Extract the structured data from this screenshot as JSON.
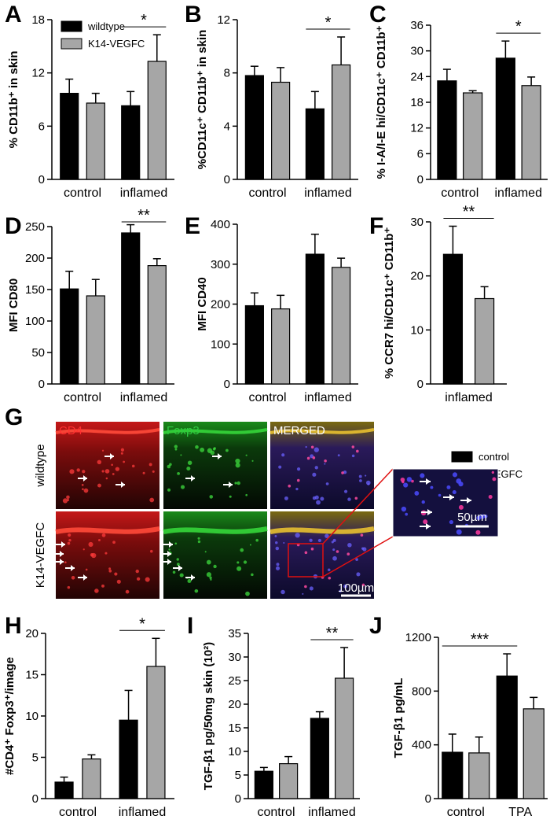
{
  "chart_data": [
    {
      "id": "A",
      "type": "bar",
      "letter": "A",
      "ylabel": "% CD11b⁺ in skin",
      "ylim": [
        0,
        18
      ],
      "yticks": [
        "0",
        "6",
        "12",
        "18"
      ],
      "categories": [
        "control",
        "inflamed"
      ],
      "legend": [
        {
          "label": "wildtype",
          "color": "#000000"
        },
        {
          "label": "K14-VEGFC",
          "color": "#a6a6a6"
        }
      ],
      "series": [
        {
          "name": "wildtype",
          "color": "#000000",
          "values": [
            9.7,
            8.3
          ],
          "errors": [
            1.6,
            1.6
          ]
        },
        {
          "name": "K14-VEGFC",
          "color": "#a6a6a6",
          "values": [
            8.6,
            13.3
          ],
          "errors": [
            1.1,
            3.0
          ]
        }
      ],
      "significance": [
        {
          "label": "*",
          "from": 2,
          "to": 3
        }
      ]
    },
    {
      "id": "B",
      "type": "bar",
      "letter": "B",
      "ylabel": "%CD11c⁺ CD11b⁺ in skin",
      "ylim": [
        0,
        12
      ],
      "yticks": [
        "0",
        "4",
        "8",
        "12"
      ],
      "categories": [
        "control",
        "inflamed"
      ],
      "series": [
        {
          "name": "wildtype",
          "color": "#000000",
          "values": [
            7.8,
            5.3
          ],
          "errors": [
            0.7,
            1.3
          ]
        },
        {
          "name": "K14-VEGFC",
          "color": "#a6a6a6",
          "values": [
            7.3,
            8.6
          ],
          "errors": [
            1.1,
            2.1
          ]
        }
      ],
      "significance": [
        {
          "label": "*",
          "from": 2,
          "to": 3
        }
      ]
    },
    {
      "id": "C",
      "type": "bar",
      "letter": "C",
      "ylabel": "% I-A/I-E hi/CD11c⁺ CD11b⁺",
      "ylim": [
        0,
        36
      ],
      "yticks": [
        "0",
        "6",
        "12",
        "18",
        "24",
        "30",
        "36"
      ],
      "categories": [
        "control",
        "inflamed"
      ],
      "series": [
        {
          "name": "wildtype",
          "color": "#000000",
          "values": [
            23,
            28.3
          ],
          "errors": [
            2.7,
            4.0
          ]
        },
        {
          "name": "K14-VEGFC",
          "color": "#a6a6a6",
          "values": [
            20.2,
            21.9
          ],
          "errors": [
            0.5,
            2.0
          ]
        }
      ],
      "significance": [
        {
          "label": "*",
          "from": 2,
          "to": 3
        }
      ]
    },
    {
      "id": "D",
      "type": "bar",
      "letter": "D",
      "ylabel": "MFI CD80",
      "ylim": [
        0,
        250
      ],
      "yticks": [
        "0",
        "50",
        "100",
        "150",
        "200",
        "250"
      ],
      "categories": [
        "control",
        "inflamed"
      ],
      "series": [
        {
          "name": "wildtype",
          "color": "#000000",
          "values": [
            151,
            240
          ],
          "errors": [
            28,
            13
          ]
        },
        {
          "name": "K14-VEGFC",
          "color": "#a6a6a6",
          "values": [
            140,
            188
          ],
          "errors": [
            26,
            11
          ]
        }
      ],
      "significance": [
        {
          "label": "**",
          "from": 2,
          "to": 3
        }
      ]
    },
    {
      "id": "E",
      "type": "bar",
      "letter": "E",
      "ylabel": "MFI CD40",
      "ylim": [
        0,
        400
      ],
      "yticks": [
        "0",
        "100",
        "200",
        "300",
        "400"
      ],
      "categories": [
        "control",
        "inflamed"
      ],
      "series": [
        {
          "name": "wildtype",
          "color": "#000000",
          "values": [
            196,
            325
          ],
          "errors": [
            32,
            50
          ]
        },
        {
          "name": "K14-VEGFC",
          "color": "#a6a6a6",
          "values": [
            188,
            292
          ],
          "errors": [
            34,
            23
          ]
        }
      ],
      "significance": []
    },
    {
      "id": "F",
      "type": "bar",
      "letter": "F",
      "ylabel": "% CCR7 hi/CD11c⁺ CD11b⁺",
      "ylim": [
        0,
        30
      ],
      "yticks": [
        "0",
        "10",
        "20",
        "30"
      ],
      "categories": [
        "inflamed"
      ],
      "series": [
        {
          "name": "wildtype",
          "color": "#000000",
          "values": [
            24
          ],
          "errors": [
            5.2
          ]
        },
        {
          "name": "K14-VEGFC",
          "color": "#a6a6a6",
          "values": [
            15.8
          ],
          "errors": [
            2.2
          ]
        }
      ],
      "significance": [
        {
          "label": "**",
          "from": 0,
          "to": 1
        }
      ]
    },
    {
      "id": "H",
      "type": "bar",
      "letter": "H",
      "ylabel": "#CD4⁺ Foxp3⁺/image",
      "ylim": [
        0,
        20
      ],
      "yticks": [
        "0",
        "5",
        "10",
        "15",
        "20"
      ],
      "categories": [
        "control",
        "inflamed"
      ],
      "series": [
        {
          "name": "wildtype",
          "color": "#000000",
          "values": [
            2.0,
            9.5
          ],
          "errors": [
            0.6,
            3.6
          ]
        },
        {
          "name": "K14-VEGFC",
          "color": "#a6a6a6",
          "values": [
            4.8,
            16.0
          ],
          "errors": [
            0.5,
            3.4
          ]
        }
      ],
      "significance": [
        {
          "label": "*",
          "from": 2,
          "to": 3
        }
      ]
    },
    {
      "id": "I",
      "type": "bar",
      "letter": "I",
      "ylabel": "TGF-β1 pg/50mg skin (10²)",
      "ylim": [
        0,
        35
      ],
      "yticks": [
        "0",
        "5",
        "10",
        "15",
        "20",
        "25",
        "30",
        "35"
      ],
      "categories": [
        "control",
        "inflamed"
      ],
      "series": [
        {
          "name": "wildtype",
          "color": "#000000",
          "values": [
            5.8,
            17.0
          ],
          "errors": [
            0.8,
            1.4
          ]
        },
        {
          "name": "K14-VEGFC",
          "color": "#a6a6a6",
          "values": [
            7.4,
            25.5
          ],
          "errors": [
            1.5,
            6.5
          ]
        }
      ],
      "significance": [
        {
          "label": "**",
          "from": 2,
          "to": 3
        }
      ]
    },
    {
      "id": "J",
      "type": "bar",
      "letter": "J",
      "ylabel": "TGF-β1 pg/mL",
      "ylim": [
        0,
        1200
      ],
      "yticks": [
        "0",
        "400",
        "800",
        "1200"
      ],
      "categories": [
        "control",
        "TPA"
      ],
      "legend": [
        {
          "label": "control",
          "color": "#000000"
        },
        {
          "label": "+ VEGFC",
          "color": "#a6a6a6"
        }
      ],
      "series": [
        {
          "name": "control",
          "color": "#000000",
          "values": [
            345,
            912
          ],
          "errors": [
            135,
            165
          ]
        },
        {
          "name": "+ VEGFC",
          "color": "#a6a6a6",
          "values": [
            340,
            668
          ],
          "errors": [
            118,
            85
          ]
        }
      ],
      "significance": [
        {
          "label": "***",
          "from": 0,
          "to": 2
        }
      ]
    }
  ],
  "micrograph": {
    "letter": "G",
    "channels": [
      "CD4",
      "Foxp3",
      "MERGED"
    ],
    "channel_colors": [
      "#ff3030",
      "#2ecc40",
      "#ffffff"
    ],
    "rows": [
      "wildtype",
      "K14-VEGFC"
    ],
    "scale_main": "100µm",
    "scale_inset": "50µm"
  }
}
